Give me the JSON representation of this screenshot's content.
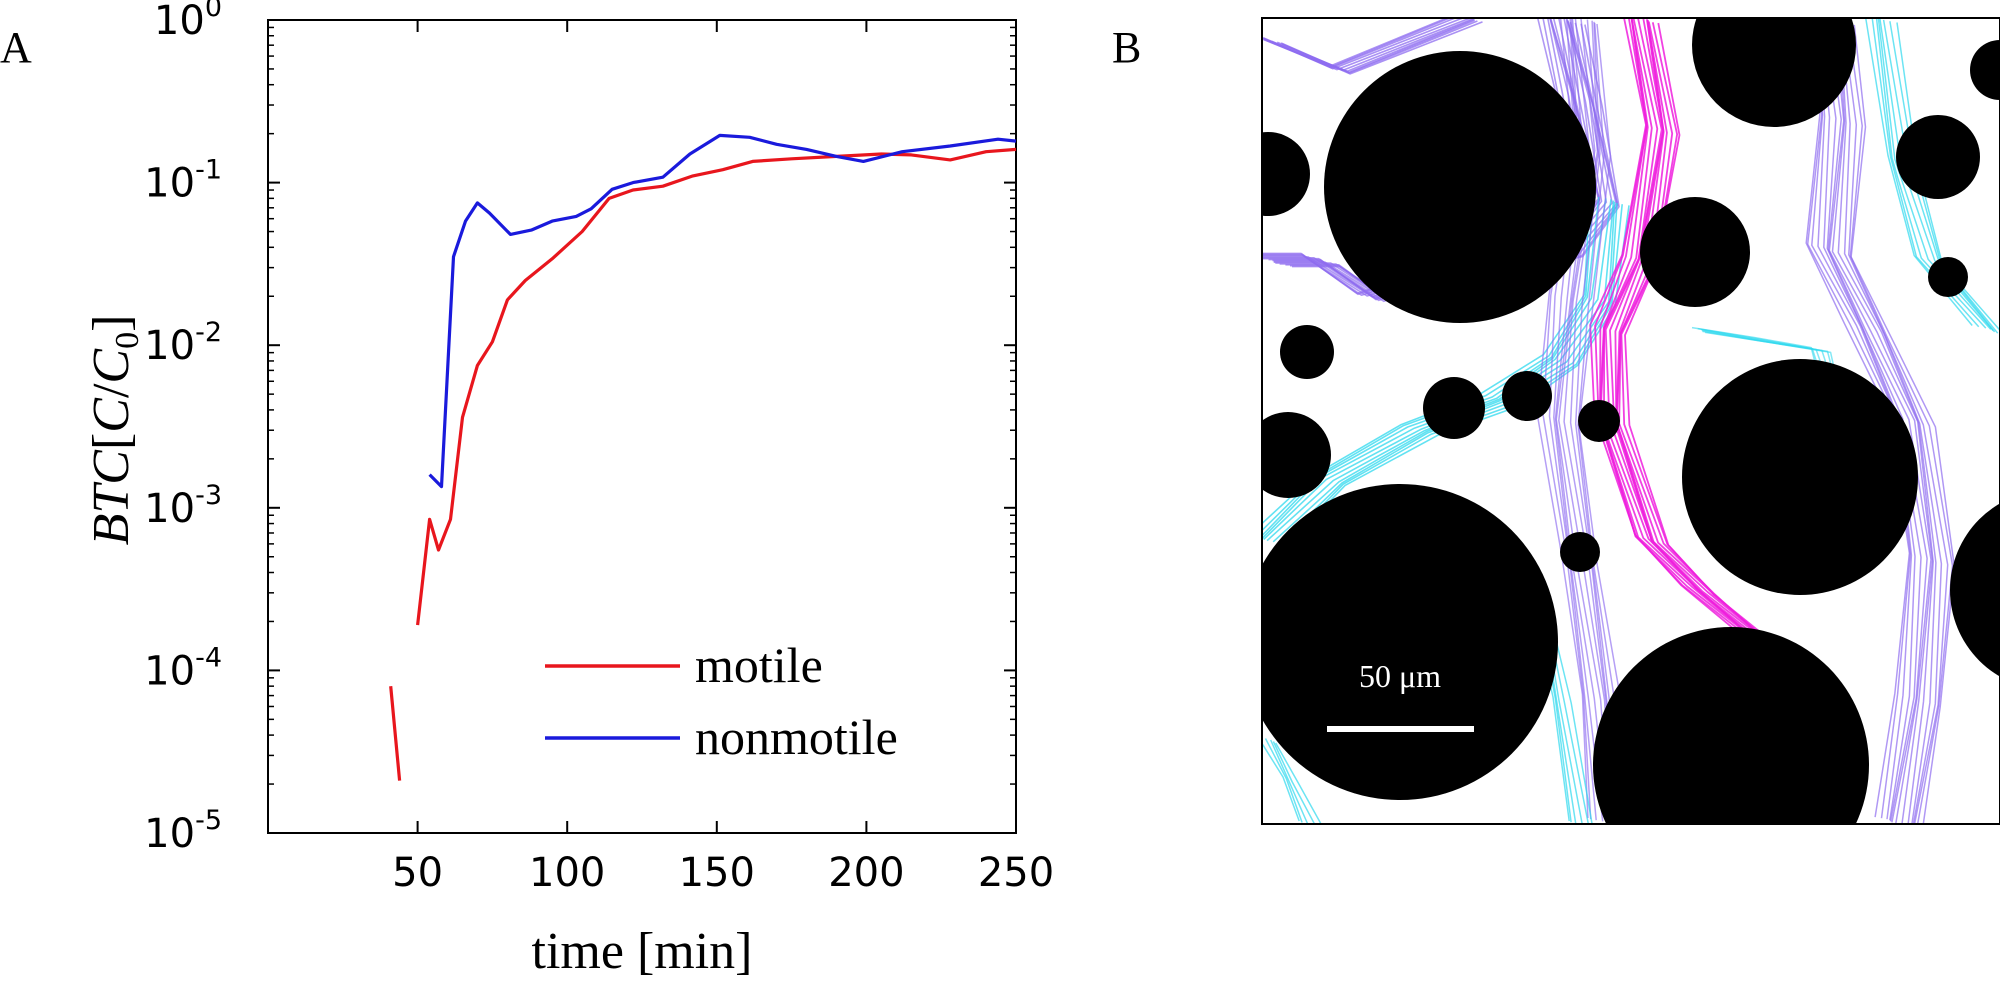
{
  "panels": {
    "a_label": "A",
    "b_label": "B"
  },
  "chart_data": {
    "type": "line",
    "title": "",
    "xlabel": "time [min]",
    "ylabel": {
      "parts": [
        "BTC",
        "[",
        "C",
        "/",
        "C",
        "0",
        "]"
      ]
    },
    "xlim": [
      0,
      250
    ],
    "ylim": [
      1e-05,
      1
    ],
    "yscale": "log",
    "x_ticks": [
      "50",
      "100",
      "150",
      "200",
      "250"
    ],
    "y_ticks": [
      {
        "base": "10",
        "exp": "-5",
        "value": 1e-05
      },
      {
        "base": "10",
        "exp": "-4",
        "value": 0.0001
      },
      {
        "base": "10",
        "exp": "-3",
        "value": 0.001
      },
      {
        "base": "10",
        "exp": "-2",
        "value": 0.01
      },
      {
        "base": "10",
        "exp": "-1",
        "value": 0.1
      },
      {
        "base": "10",
        "exp": "0",
        "value": 1
      }
    ],
    "grid": false,
    "legend_position": "bottom-right",
    "series": [
      {
        "name": "motile",
        "color": "#e8161d",
        "segments": [
          [
            [
              41,
              8e-05
            ],
            [
              44,
              2.1e-05
            ]
          ],
          [
            [
              50,
              0.00019
            ],
            [
              54,
              0.00085
            ],
            [
              57,
              0.00055
            ],
            [
              61,
              0.00085
            ],
            [
              65,
              0.0036
            ],
            [
              70,
              0.0075
            ],
            [
              75,
              0.0105
            ],
            [
              80,
              0.019
            ],
            [
              86,
              0.025
            ],
            [
              95,
              0.034
            ],
            [
              105,
              0.05
            ],
            [
              114,
              0.08
            ],
            [
              122,
              0.09
            ],
            [
              132,
              0.095
            ],
            [
              142,
              0.11
            ],
            [
              152,
              0.12
            ],
            [
              162,
              0.135
            ],
            [
              175,
              0.14
            ],
            [
              190,
              0.145
            ],
            [
              205,
              0.15
            ],
            [
              215,
              0.148
            ],
            [
              228,
              0.138
            ],
            [
              240,
              0.155
            ],
            [
              250,
              0.16
            ]
          ]
        ]
      },
      {
        "name": "nonmotile",
        "color": "#1a1adc",
        "segments": [
          [
            [
              54,
              0.0016
            ],
            [
              58,
              0.00135
            ],
            [
              62,
              0.035
            ],
            [
              66,
              0.058
            ],
            [
              70,
              0.075
            ],
            [
              74,
              0.065
            ],
            [
              81,
              0.048
            ],
            [
              88,
              0.051
            ],
            [
              95,
              0.058
            ],
            [
              103,
              0.062
            ],
            [
              108,
              0.069
            ],
            [
              115,
              0.091
            ],
            [
              122,
              0.1
            ],
            [
              132,
              0.108
            ],
            [
              141,
              0.15
            ],
            [
              151,
              0.195
            ],
            [
              161,
              0.19
            ],
            [
              170,
              0.172
            ],
            [
              180,
              0.16
            ],
            [
              190,
              0.145
            ],
            [
              199,
              0.135
            ],
            [
              212,
              0.155
            ],
            [
              228,
              0.168
            ],
            [
              244,
              0.185
            ],
            [
              250,
              0.18
            ]
          ]
        ]
      }
    ]
  },
  "micrograph": {
    "scale_bar_label": "50 μm",
    "colors": {
      "background": "#ffffff",
      "pillar": "#000000",
      "trace_cyan": "#2ed8ee",
      "trace_violet": "#8e6cf0",
      "trace_magenta": "#ee20dd",
      "scale_bar": "#ffffff"
    }
  }
}
